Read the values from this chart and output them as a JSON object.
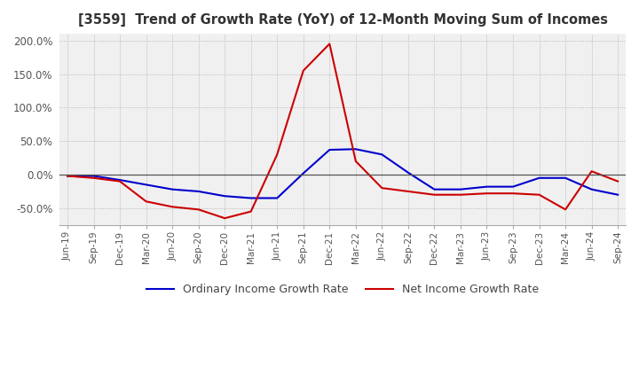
{
  "title": "[3559]  Trend of Growth Rate (YoY) of 12-Month Moving Sum of Incomes",
  "ylim": [
    -75,
    210
  ],
  "yticks": [
    -50,
    0,
    50,
    100,
    150,
    200
  ],
  "ytick_labels": [
    "-50.0%",
    "0.0%",
    "50.0%",
    "100.0%",
    "150.0%",
    "200.0%"
  ],
  "background_color": "#ffffff",
  "plot_bg_color": "#f0f0f0",
  "grid_color": "#aaaaaa",
  "legend": [
    "Ordinary Income Growth Rate",
    "Net Income Growth Rate"
  ],
  "line_colors": [
    "#0000cc",
    "#cc0000"
  ],
  "x_labels": [
    "Jun-19",
    "Sep-19",
    "Dec-19",
    "Mar-20",
    "Jun-20",
    "Sep-20",
    "Dec-20",
    "Mar-21",
    "Jun-21",
    "Sep-21",
    "Dec-21",
    "Mar-22",
    "Jun-22",
    "Sep-22",
    "Dec-22",
    "Mar-23",
    "Jun-23",
    "Sep-23",
    "Dec-23",
    "Mar-24",
    "Jun-24",
    "Sep-24"
  ],
  "ordinary_income": [
    -2,
    -2,
    -8,
    -15,
    -22,
    -25,
    -32,
    -35,
    -35,
    2,
    37,
    38,
    30,
    3,
    -22,
    -22,
    -18,
    -18,
    -5,
    -5,
    -22,
    -30
  ],
  "net_income": [
    -2,
    -5,
    -10,
    -40,
    -48,
    -52,
    -65,
    -55,
    30,
    155,
    195,
    20,
    -20,
    -25,
    -30,
    -30,
    -28,
    -28,
    -30,
    -52,
    5,
    -10
  ]
}
